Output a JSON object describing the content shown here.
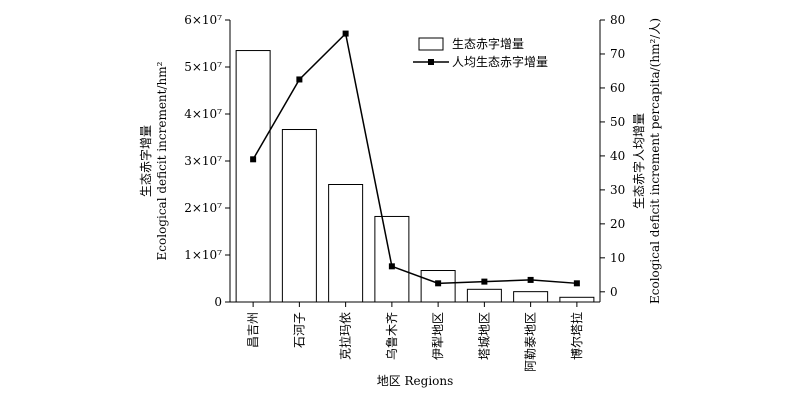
{
  "chart_data": {
    "type": "bar",
    "categories": [
      "昌吉州",
      "石河子",
      "克拉玛依",
      "乌鲁木齐",
      "伊犁地区",
      "塔城地区",
      "阿勒泰地区",
      "博尔塔拉"
    ],
    "series": [
      {
        "name": "生态赤字增量",
        "type": "bar",
        "axis": "left",
        "values": [
          53500000,
          36700000,
          25000000,
          18200000,
          6700000,
          2700000,
          2200000,
          1000000
        ]
      },
      {
        "name": "人均生态赤字增量",
        "type": "line",
        "axis": "right",
        "marker": "square",
        "values": [
          39,
          62.5,
          76,
          7.5,
          2.5,
          3,
          3.5,
          2.5
        ]
      }
    ],
    "xlabel": "地区 Regions",
    "ylabel_left": [
      "生态赤字增量",
      "Ecological deficit increment/hm²"
    ],
    "ylabel_right": [
      "生态赤字人均增量",
      "Ecological deficit increment percapita/(hm²/人)"
    ],
    "ylim_left": [
      0,
      60000000
    ],
    "ylim_right": [
      -3,
      80
    ],
    "yticks_left": [
      {
        "value": 0,
        "label": "0"
      },
      {
        "value": 10000000,
        "label": "1×10⁷"
      },
      {
        "value": 20000000,
        "label": "2×10⁷"
      },
      {
        "value": 30000000,
        "label": "3×10⁷"
      },
      {
        "value": 40000000,
        "label": "4×10⁷"
      },
      {
        "value": 50000000,
        "label": "5×10⁷"
      },
      {
        "value": 60000000,
        "label": "6×10⁷"
      }
    ],
    "yticks_right": [
      0,
      10,
      20,
      30,
      40,
      50,
      60,
      70,
      80
    ],
    "legend_position": "top-right",
    "grid": false
  }
}
